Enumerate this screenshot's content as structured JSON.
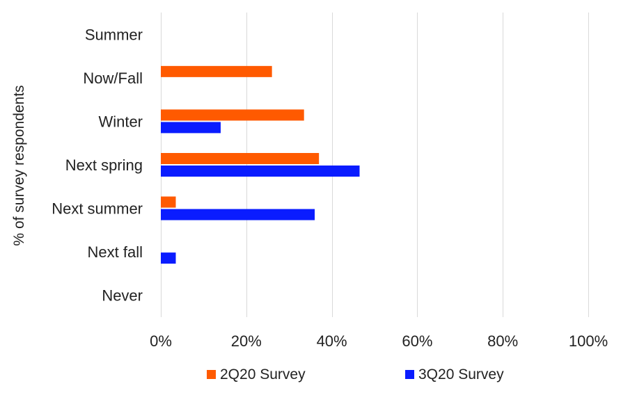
{
  "chart_data": {
    "type": "bar",
    "orientation": "horizontal",
    "title": "",
    "xlabel": "",
    "ylabel": "% of survey respondents",
    "categories": [
      "Summer",
      "Now/Fall",
      "Winter",
      "Next spring",
      "Next summer",
      "Next fall",
      "Never"
    ],
    "series": [
      {
        "name": "2Q20 Survey",
        "color": "#ff5a00",
        "values": [
          0,
          26,
          33.5,
          37,
          3.5,
          0,
          0
        ]
      },
      {
        "name": "3Q20 Survey",
        "color": "#0a1cff",
        "values": [
          0,
          0,
          14,
          46.5,
          36,
          3.5,
          0
        ]
      }
    ],
    "xlim": [
      0,
      100
    ],
    "xticks": [
      "0%",
      "20%",
      "40%",
      "60%",
      "80%",
      "100%"
    ],
    "grid": true,
    "legend": "bottom"
  }
}
